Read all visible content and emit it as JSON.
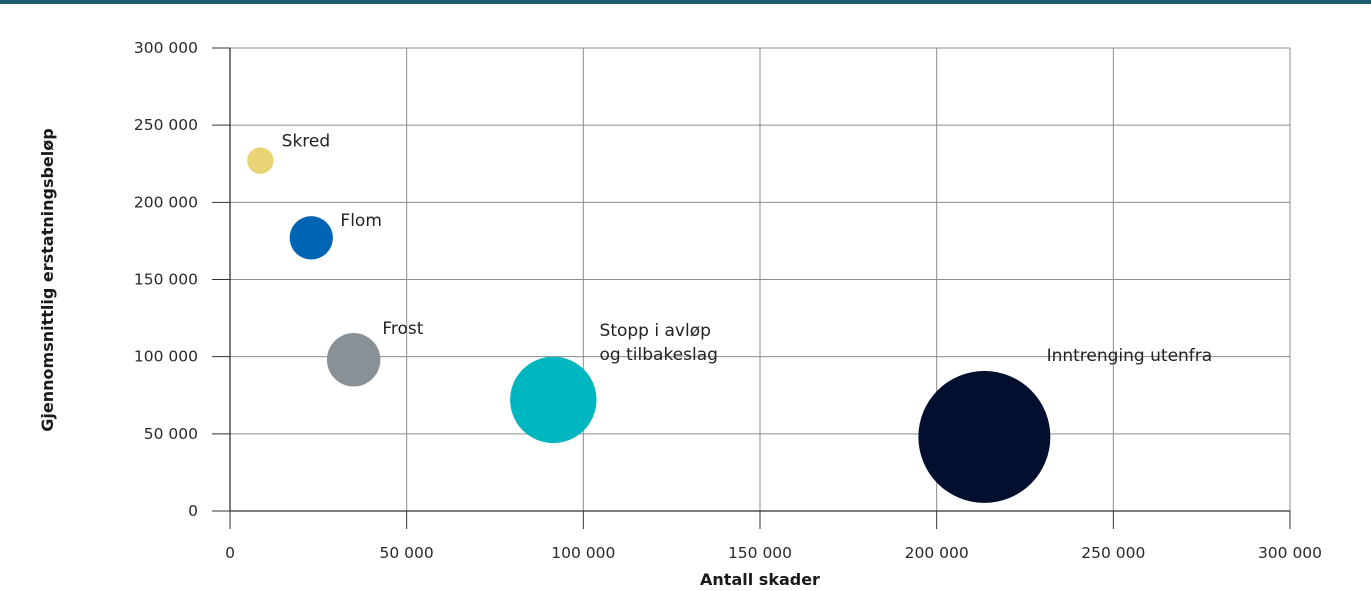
{
  "colors": {
    "top_bar": "#1f5c6e",
    "grid": "#8c8c8c",
    "axis": "#333333"
  },
  "chart_data": {
    "type": "scatter",
    "subtype": "bubble",
    "title": "",
    "xlabel": "Antall skader",
    "ylabel": "Gjennomsnittlig erstatningsbeløp",
    "xlim": [
      0,
      300000
    ],
    "ylim": [
      0,
      300000
    ],
    "x_ticks": [
      0,
      50000,
      100000,
      150000,
      200000,
      250000,
      300000
    ],
    "y_ticks": [
      0,
      50000,
      100000,
      150000,
      200000,
      250000,
      300000
    ],
    "x_tick_labels": [
      "0",
      "50 000",
      "100 000",
      "150 000",
      "200 000",
      "250 000",
      "300 000"
    ],
    "y_tick_labels": [
      "0",
      "50 000",
      "100 000",
      "150 000",
      "200 000",
      "250 000",
      "300 000"
    ],
    "grid": true,
    "legend": "none",
    "size_by": "x",
    "points": [
      {
        "label": [
          "Skred"
        ],
        "x": 8600,
        "y": 227000,
        "color": "#e8d477"
      },
      {
        "label": [
          "Flom"
        ],
        "x": 23000,
        "y": 177000,
        "color": "#0064b4"
      },
      {
        "label": [
          "Frost"
        ],
        "x": 35000,
        "y": 98000,
        "color": "#8a9196"
      },
      {
        "label": [
          "Stopp i avløp",
          "og tilbakeslag"
        ],
        "x": 91500,
        "y": 72000,
        "color": "#00b7c0"
      },
      {
        "label": [
          "Inntrenging utenfra"
        ],
        "x": 213500,
        "y": 48000,
        "color": "#020f2e"
      }
    ]
  }
}
